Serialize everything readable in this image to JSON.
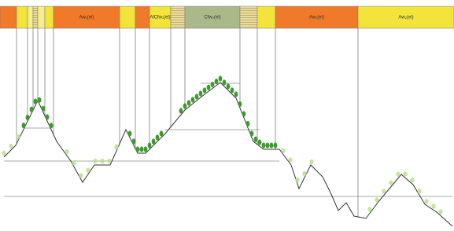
{
  "zones": [
    {
      "label": "Aw₁(el)"
    },
    {
      "label": "AlCfw₁(el)"
    },
    {
      "label": "Cfw₂(el)"
    },
    {
      "label": "Aw₁(el)"
    },
    {
      "label": "Aw₂(el)"
    }
  ]
}
